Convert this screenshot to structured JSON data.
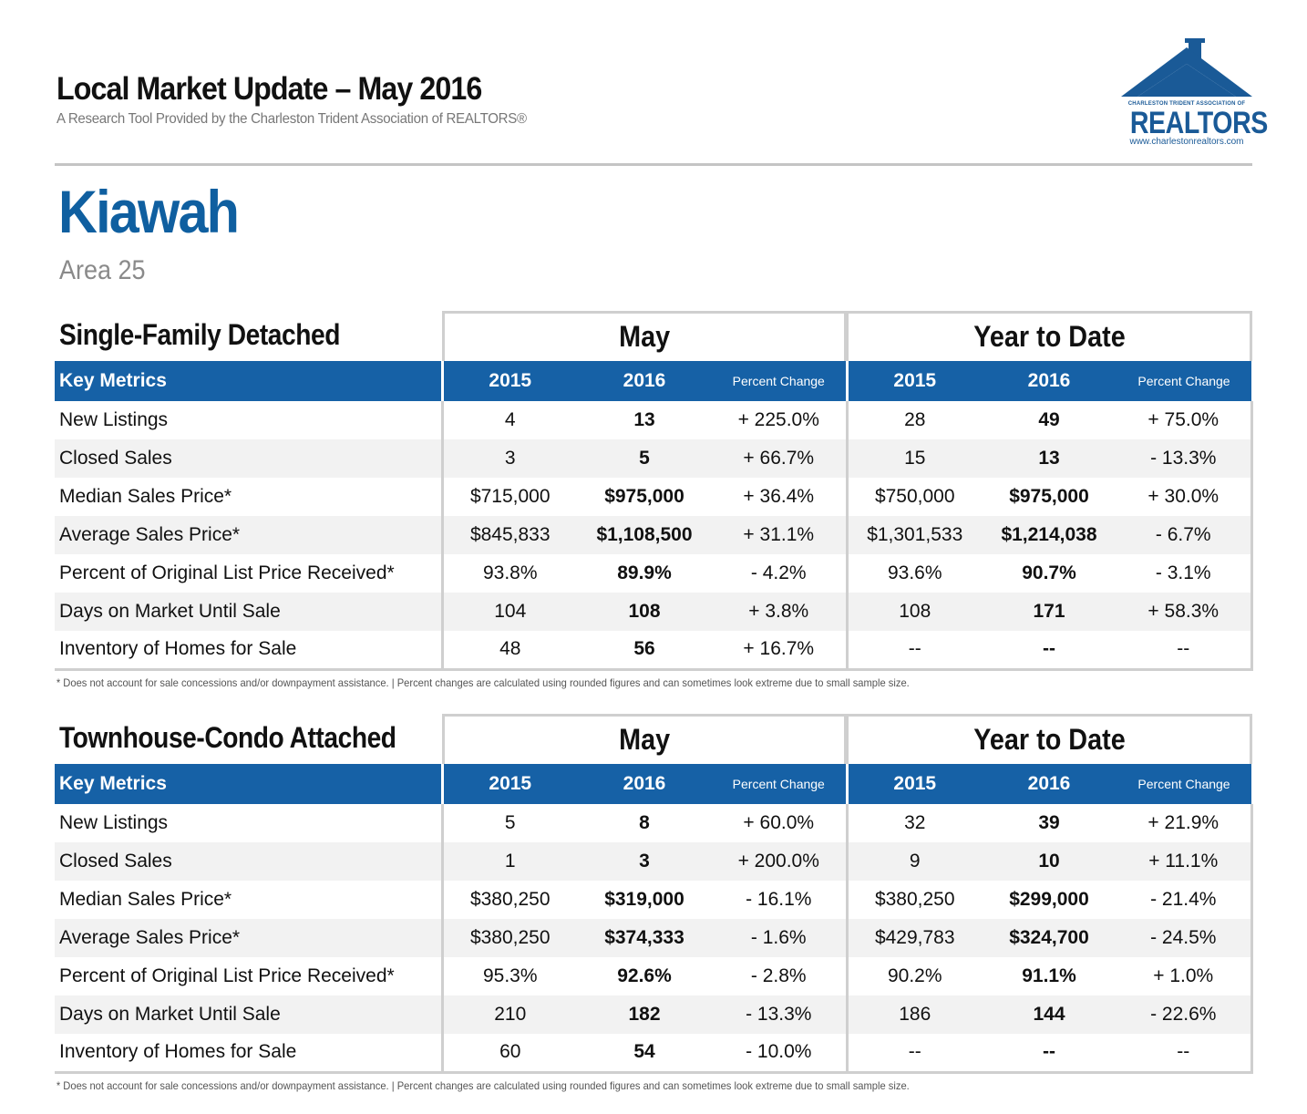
{
  "header": {
    "title": "Local Market Update – May 2016",
    "subtitle": "A Research Tool Provided by the Charleston Trident Association of REALTORS®"
  },
  "logo": {
    "association": "CHARLESTON TRIDENT ASSOCIATION OF",
    "name": "REALTORS",
    "url": "www.charlestonrealtors.com",
    "color": "#1a5a97"
  },
  "area": {
    "name": "Kiawah",
    "sub": "Area 25"
  },
  "accent_color": "#1661a6",
  "sections": [
    {
      "title": "Single-Family Detached",
      "group_month": "May",
      "group_ytd": "Year to Date",
      "col_metric": "Key Metrics",
      "col_2015": "2015",
      "col_2016": "2016",
      "col_pct": "Percent Change",
      "rows": [
        [
          "New Listings",
          "4",
          "13",
          "+ 225.0%",
          "28",
          "49",
          "+ 75.0%"
        ],
        [
          "Closed Sales",
          "3",
          "5",
          "+ 66.7%",
          "15",
          "13",
          "- 13.3%"
        ],
        [
          "Median Sales Price*",
          "$715,000",
          "$975,000",
          "+ 36.4%",
          "$750,000",
          "$975,000",
          "+ 30.0%"
        ],
        [
          "Average Sales Price*",
          "$845,833",
          "$1,108,500",
          "+ 31.1%",
          "$1,301,533",
          "$1,214,038",
          "- 6.7%"
        ],
        [
          "Percent of Original List Price Received*",
          "93.8%",
          "89.9%",
          "- 4.2%",
          "93.6%",
          "90.7%",
          "- 3.1%"
        ],
        [
          "Days on Market Until Sale",
          "104",
          "108",
          "+ 3.8%",
          "108",
          "171",
          "+ 58.3%"
        ],
        [
          "Inventory of Homes for Sale",
          "48",
          "56",
          "+ 16.7%",
          "--",
          "--",
          "--"
        ]
      ],
      "footnote": "* Does not account for sale concessions and/or downpayment assistance.  |  Percent changes are calculated using rounded figures and can sometimes look extreme due to small sample size."
    },
    {
      "title": "Townhouse-Condo Attached",
      "group_month": "May",
      "group_ytd": "Year to Date",
      "col_metric": "Key Metrics",
      "col_2015": "2015",
      "col_2016": "2016",
      "col_pct": "Percent Change",
      "rows": [
        [
          "New Listings",
          "5",
          "8",
          "+ 60.0%",
          "32",
          "39",
          "+ 21.9%"
        ],
        [
          "Closed Sales",
          "1",
          "3",
          "+ 200.0%",
          "9",
          "10",
          "+ 11.1%"
        ],
        [
          "Median Sales Price*",
          "$380,250",
          "$319,000",
          "- 16.1%",
          "$380,250",
          "$299,000",
          "- 21.4%"
        ],
        [
          "Average Sales Price*",
          "$380,250",
          "$374,333",
          "- 1.6%",
          "$429,783",
          "$324,700",
          "- 24.5%"
        ],
        [
          "Percent of Original List Price Received*",
          "95.3%",
          "92.6%",
          "- 2.8%",
          "90.2%",
          "91.1%",
          "+ 1.0%"
        ],
        [
          "Days on Market Until Sale",
          "210",
          "182",
          "- 13.3%",
          "186",
          "144",
          "- 22.6%"
        ],
        [
          "Inventory of Homes for Sale",
          "60",
          "54",
          "- 10.0%",
          "--",
          "--",
          "--"
        ]
      ],
      "footnote": "* Does not account for sale concessions and/or downpayment assistance.  |  Percent changes are calculated using rounded figures and can sometimes look extreme due to small sample size."
    }
  ]
}
